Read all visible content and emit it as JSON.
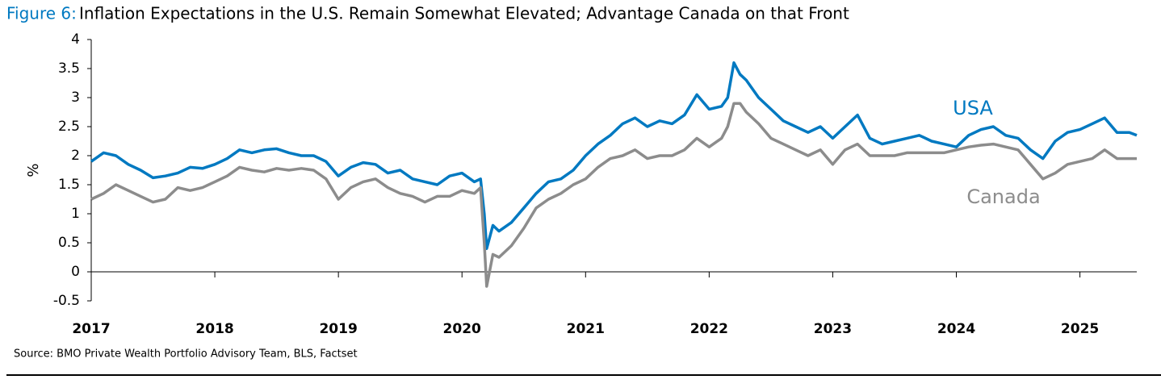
{
  "chart_data": {
    "type": "line",
    "figure_label": "Figure 6:",
    "title": "Inflation Expectations in the U.S. Remain Somewhat Elevated; Advantage Canada on that Front",
    "y_label": "%",
    "source": "Source: BMO Private Wealth Portfolio Advisory Team, BLS, Factset",
    "x": [
      2017.0,
      2017.1,
      2017.2,
      2017.3,
      2017.4,
      2017.5,
      2017.6,
      2017.7,
      2017.8,
      2017.9,
      2018.0,
      2018.1,
      2018.2,
      2018.3,
      2018.4,
      2018.5,
      2018.6,
      2018.7,
      2018.8,
      2018.9,
      2019.0,
      2019.1,
      2019.2,
      2019.3,
      2019.4,
      2019.5,
      2019.6,
      2019.7,
      2019.8,
      2019.9,
      2020.0,
      2020.1,
      2020.15,
      2020.18,
      2020.2,
      2020.25,
      2020.3,
      2020.4,
      2020.5,
      2020.6,
      2020.7,
      2020.8,
      2020.9,
      2021.0,
      2021.1,
      2021.2,
      2021.3,
      2021.4,
      2021.5,
      2021.6,
      2021.7,
      2021.8,
      2021.9,
      2022.0,
      2022.1,
      2022.15,
      2022.2,
      2022.25,
      2022.3,
      2022.4,
      2022.5,
      2022.6,
      2022.7,
      2022.8,
      2022.9,
      2023.0,
      2023.1,
      2023.2,
      2023.3,
      2023.4,
      2023.5,
      2023.6,
      2023.7,
      2023.8,
      2023.9,
      2024.0,
      2024.1,
      2024.2,
      2024.3,
      2024.4,
      2024.5,
      2024.6,
      2024.7,
      2024.8,
      2024.9,
      2025.0,
      2025.1,
      2025.2,
      2025.3,
      2025.4,
      2025.46
    ],
    "series": [
      {
        "name": "USA",
        "color": "#0079c1",
        "values": [
          1.9,
          2.05,
          2.0,
          1.85,
          1.75,
          1.62,
          1.65,
          1.7,
          1.8,
          1.78,
          1.85,
          1.95,
          2.1,
          2.05,
          2.1,
          2.12,
          2.05,
          2.0,
          2.0,
          1.9,
          1.65,
          1.8,
          1.88,
          1.85,
          1.7,
          1.75,
          1.6,
          1.55,
          1.5,
          1.65,
          1.7,
          1.55,
          1.6,
          1.0,
          0.4,
          0.8,
          0.7,
          0.85,
          1.1,
          1.35,
          1.55,
          1.6,
          1.75,
          2.0,
          2.2,
          2.35,
          2.55,
          2.65,
          2.5,
          2.6,
          2.55,
          2.7,
          3.05,
          2.8,
          2.85,
          3.0,
          3.6,
          3.4,
          3.3,
          3.0,
          2.8,
          2.6,
          2.5,
          2.4,
          2.5,
          2.3,
          2.5,
          2.7,
          2.3,
          2.2,
          2.25,
          2.3,
          2.35,
          2.25,
          2.2,
          2.15,
          2.35,
          2.45,
          2.5,
          2.35,
          2.3,
          2.1,
          1.95,
          2.25,
          2.4,
          2.45,
          2.55,
          2.65,
          2.4,
          2.4,
          2.35
        ]
      },
      {
        "name": "Canada",
        "color": "#8c8c8c",
        "values": [
          1.25,
          1.35,
          1.5,
          1.4,
          1.3,
          1.2,
          1.25,
          1.45,
          1.4,
          1.45,
          1.55,
          1.65,
          1.8,
          1.75,
          1.72,
          1.78,
          1.75,
          1.78,
          1.75,
          1.6,
          1.25,
          1.45,
          1.55,
          1.6,
          1.45,
          1.35,
          1.3,
          1.2,
          1.3,
          1.3,
          1.4,
          1.35,
          1.45,
          0.5,
          -0.25,
          0.3,
          0.25,
          0.45,
          0.75,
          1.1,
          1.25,
          1.35,
          1.5,
          1.6,
          1.8,
          1.95,
          2.0,
          2.1,
          1.95,
          2.0,
          2.0,
          2.1,
          2.3,
          2.15,
          2.3,
          2.5,
          2.9,
          2.9,
          2.75,
          2.55,
          2.3,
          2.2,
          2.1,
          2.0,
          2.1,
          1.85,
          2.1,
          2.2,
          2.0,
          2.0,
          2.0,
          2.05,
          2.05,
          2.05,
          2.05,
          2.1,
          2.15,
          2.18,
          2.2,
          2.15,
          2.1,
          1.85,
          1.6,
          1.7,
          1.85,
          1.9,
          1.95,
          2.1,
          1.95,
          1.95,
          1.95
        ]
      }
    ],
    "xlim": [
      2017,
      2025.46
    ],
    "xticks": [
      2017,
      2018,
      2019,
      2020,
      2021,
      2022,
      2023,
      2024,
      2025
    ],
    "ylim": [
      -0.5,
      4
    ],
    "yticks": [
      -0.5,
      0,
      0.5,
      1,
      1.5,
      2,
      2.5,
      3,
      3.5,
      4
    ],
    "grid": false
  }
}
